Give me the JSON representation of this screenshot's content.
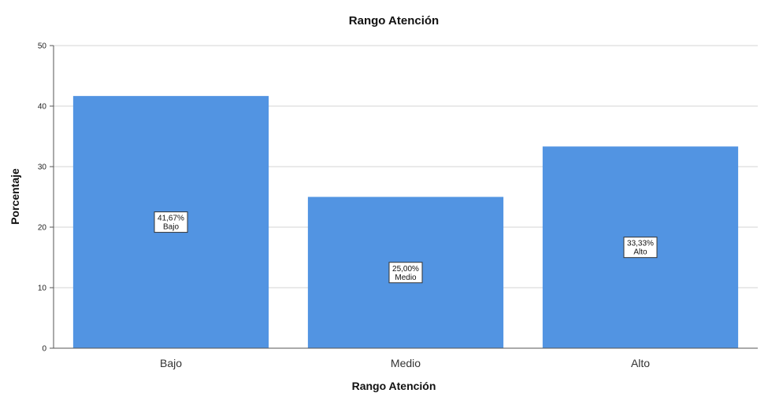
{
  "chart_data": {
    "type": "bar",
    "title": "Rango Atención",
    "xlabel": "Rango Atención",
    "ylabel": "Porcentaje",
    "categories": [
      "Bajo",
      "Medio",
      "Alto"
    ],
    "values": [
      41.67,
      25.0,
      33.33
    ],
    "data_labels": [
      {
        "value": "41,67%",
        "category": "Bajo"
      },
      {
        "value": "25,00%",
        "category": "Medio"
      },
      {
        "value": "33,33%",
        "category": "Alto"
      }
    ],
    "yticks": [
      "0",
      "10",
      "20",
      "30",
      "40",
      "50"
    ],
    "ylim": [
      0,
      50
    ],
    "grid": true,
    "bar_color": "#5294e2"
  }
}
